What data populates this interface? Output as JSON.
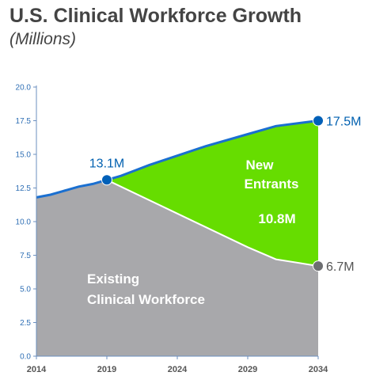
{
  "header": {
    "title": "U.S. Clinical Workforce Growth",
    "subtitle": "(Millions)"
  },
  "chart_data": {
    "type": "area",
    "title": "U.S. Clinical Workforce Growth",
    "subtitle": "(Millions)",
    "x_ticks": [
      "2014",
      "2019",
      "2024",
      "2029",
      "2034"
    ],
    "y_ticks": [
      "0.0",
      "2.5",
      "5.0",
      "7.5",
      "10.0",
      "12.5",
      "15.0",
      "17.5",
      "20.0"
    ],
    "xlim": [
      2014,
      2034
    ],
    "ylim": [
      0,
      20
    ],
    "grid": false,
    "series": [
      {
        "name": "Existing Clinical Workforce",
        "color": "#a8a8ab",
        "x": [
          2014,
          2015,
          2016,
          2017,
          2018,
          2019,
          2024,
          2029,
          2031,
          2034
        ],
        "values": [
          11.8,
          12.0,
          12.4,
          12.6,
          12.8,
          13.1,
          10.6,
          8.1,
          7.2,
          6.7
        ]
      },
      {
        "name": "New Entrants",
        "color": "#66dd00",
        "x": [
          2014,
          2015,
          2016,
          2017,
          2018,
          2019,
          2020,
          2021,
          2022,
          2024,
          2026,
          2029,
          2031,
          2034
        ],
        "values": [
          11.8,
          12.0,
          12.3,
          12.6,
          12.8,
          13.1,
          13.4,
          13.8,
          14.2,
          14.9,
          15.6,
          16.5,
          17.1,
          17.5
        ]
      }
    ],
    "annotations": {
      "total_2019": "13.1M",
      "total_2034": "17.5M",
      "existing_2034": "6.7M",
      "new_entrants_value": "10.8M"
    },
    "area_labels": {
      "new_entrants_line1": "New",
      "new_entrants_line2": "Entrants",
      "existing_line1": "Existing",
      "existing_line2": "Clinical Workforce"
    },
    "colors": {
      "total_line": "#1a6fd0",
      "existing_line": "#ffffff",
      "marker_total": "#0060b8",
      "marker_existing": "#6d6e71",
      "axis": "#6b8fbf"
    }
  }
}
